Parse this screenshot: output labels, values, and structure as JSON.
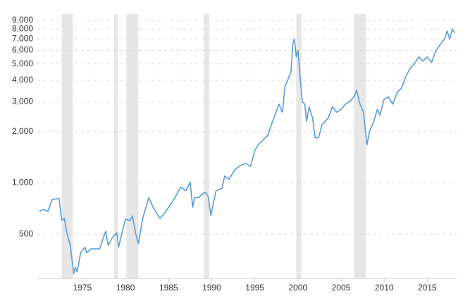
{
  "chart_data": {
    "type": "line",
    "log_scale": true,
    "grid": true,
    "xlim": [
      1969.7,
      2018.4
    ],
    "ylim": [
      275,
      9800
    ],
    "xticks": [
      1975,
      1980,
      1985,
      1990,
      1995,
      2000,
      2005,
      2010,
      2015
    ],
    "yticks": [
      500,
      {
        "value": 1000,
        "label": "1,000"
      },
      {
        "value": 2000,
        "label": "2,000"
      },
      {
        "value": 3000,
        "label": "3,000"
      },
      {
        "value": 4000,
        "label": "4,000"
      },
      {
        "value": 5000,
        "label": "5,000"
      },
      {
        "value": 6000,
        "label": "6,000"
      },
      {
        "value": 7000,
        "label": "7,000"
      },
      {
        "value": 8000,
        "label": "8,000"
      },
      {
        "value": 9000,
        "label": "9,000"
      }
    ],
    "recession_color": "#e6e6e6",
    "recessions": [
      [
        1972.6,
        1973.9
      ],
      [
        1978.7,
        1979.1
      ],
      [
        1980.1,
        1981.5
      ],
      [
        1989.1,
        1989.7
      ],
      [
        1999.8,
        2000.4
      ],
      [
        2006.5,
        2007.9
      ]
    ],
    "series": [
      {
        "color": "#5b9bd5",
        "x": [
          1970.0,
          1970.5,
          1971.0,
          1971.5,
          1972.3,
          1972.6,
          1972.9,
          1973.2,
          1973.6,
          1974.0,
          1974.2,
          1974.4,
          1974.8,
          1975.3,
          1975.5,
          1976.0,
          1977.0,
          1977.7,
          1978.0,
          1978.5,
          1979.0,
          1979.2,
          1980.0,
          1980.5,
          1980.8,
          1981.2,
          1981.5,
          1982.0,
          1982.7,
          1983.2,
          1983.8,
          1984.0,
          1984.5,
          1985.5,
          1986.4,
          1987.0,
          1987.5,
          1987.8,
          1988.0,
          1988.5,
          1989.0,
          1989.3,
          1989.6,
          1989.9,
          1990.5,
          1991.2,
          1991.5,
          1992.0,
          1992.7,
          1993.5,
          1994.0,
          1994.5,
          1995.0,
          1995.5,
          1996.5,
          1997.0,
          1997.8,
          1998.2,
          1998.5,
          1998.8,
          1999.2,
          1999.4,
          1999.6,
          1999.8,
          2000.0,
          2000.2,
          2000.5,
          2000.8,
          2001.0,
          2001.3,
          2001.7,
          2002.0,
          2002.4,
          2002.8,
          2003.5,
          2004.0,
          2004.5,
          2005.0,
          2005.5,
          2006.0,
          2006.5,
          2006.8,
          2007.2,
          2007.6,
          2008.0,
          2008.3,
          2008.8,
          2009.2,
          2009.5,
          2010.0,
          2010.5,
          2011.0,
          2011.5,
          2012.0,
          2012.5,
          2013.0,
          2013.5,
          2014.0,
          2014.5,
          2015.0,
          2015.5,
          2016.0,
          2016.5,
          2017.0,
          2017.3,
          2017.6,
          2017.9,
          2018.2
        ],
        "values": [
          680,
          700,
          680,
          800,
          810,
          605,
          620,
          510,
          430,
          293,
          320,
          300,
          390,
          420,
          390,
          410,
          410,
          520,
          430,
          480,
          510,
          420,
          615,
          600,
          640,
          500,
          440,
          620,
          820,
          720,
          640,
          620,
          660,
          780,
          945,
          900,
          1010,
          720,
          820,
          820,
          870,
          880,
          830,
          645,
          900,
          930,
          1100,
          1050,
          1200,
          1280,
          1300,
          1250,
          1550,
          1700,
          1900,
          2250,
          2900,
          2600,
          3700,
          4000,
          4500,
          6500,
          7000,
          5500,
          6000,
          4500,
          3000,
          2900,
          2300,
          2800,
          2400,
          1840,
          1850,
          2200,
          2400,
          2800,
          2600,
          2700,
          2900,
          3000,
          3200,
          3500,
          2900,
          2600,
          1670,
          2000,
          2300,
          2700,
          2500,
          3100,
          3200,
          2900,
          3400,
          3600,
          4200,
          4700,
          5000,
          5500,
          5200,
          5500,
          5100,
          6000,
          6500,
          7000,
          7800,
          7000,
          8000,
          7600
        ]
      }
    ]
  }
}
